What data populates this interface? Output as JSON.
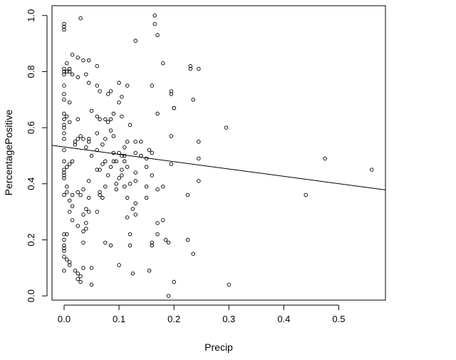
{
  "chart_data": {
    "type": "scatter",
    "title": "",
    "xlabel": "Precip",
    "ylabel": "PercentagePositive",
    "xlim": [
      -0.022,
      0.585
    ],
    "ylim": [
      -0.015,
      1.035
    ],
    "xticks": [
      0.0,
      0.1,
      0.2,
      0.3,
      0.4,
      0.5
    ],
    "xtick_labels": [
      "0.0",
      "0.1",
      "0.2",
      "0.3",
      "0.4",
      "0.5"
    ],
    "yticks": [
      0.0,
      0.2,
      0.4,
      0.6,
      0.8,
      1.0
    ],
    "ytick_labels": [
      "0.0",
      "0.2",
      "0.4",
      "0.6",
      "0.8",
      "1.0"
    ],
    "grid": false,
    "legend": "none",
    "marker": "open-circle",
    "regression_line": {
      "x": [
        -0.022,
        0.585
      ],
      "y": [
        0.537,
        0.378
      ]
    },
    "points": [
      [
        0.0,
        0.97
      ],
      [
        0.0,
        0.96
      ],
      [
        0.0,
        0.95
      ],
      [
        0.0,
        0.81
      ],
      [
        0.0,
        0.8
      ],
      [
        0.0,
        0.79
      ],
      [
        0.0,
        0.75
      ],
      [
        0.0,
        0.72
      ],
      [
        0.0,
        0.7
      ],
      [
        0.0,
        0.65
      ],
      [
        0.0,
        0.63
      ],
      [
        0.0,
        0.61
      ],
      [
        0.0,
        0.6
      ],
      [
        0.0,
        0.58
      ],
      [
        0.0,
        0.56
      ],
      [
        0.0,
        0.52
      ],
      [
        0.0,
        0.48
      ],
      [
        0.0,
        0.45
      ],
      [
        0.0,
        0.44
      ],
      [
        0.0,
        0.43
      ],
      [
        0.0,
        0.42
      ],
      [
        0.0,
        0.36
      ],
      [
        0.0,
        0.22
      ],
      [
        0.0,
        0.2
      ],
      [
        0.0,
        0.18
      ],
      [
        0.0,
        0.17
      ],
      [
        0.0,
        0.16
      ],
      [
        0.0,
        0.14
      ],
      [
        0.0,
        0.09
      ],
      [
        0.005,
        0.83
      ],
      [
        0.005,
        0.8
      ],
      [
        0.005,
        0.64
      ],
      [
        0.005,
        0.46
      ],
      [
        0.005,
        0.39
      ],
      [
        0.005,
        0.37
      ],
      [
        0.005,
        0.22
      ],
      [
        0.005,
        0.13
      ],
      [
        0.01,
        0.81
      ],
      [
        0.01,
        0.8
      ],
      [
        0.01,
        0.69
      ],
      [
        0.01,
        0.62
      ],
      [
        0.01,
        0.47
      ],
      [
        0.01,
        0.34
      ],
      [
        0.01,
        0.3
      ],
      [
        0.01,
        0.12
      ],
      [
        0.01,
        0.11
      ],
      [
        0.015,
        0.86
      ],
      [
        0.015,
        0.79
      ],
      [
        0.015,
        0.48
      ],
      [
        0.015,
        0.36
      ],
      [
        0.015,
        0.27
      ],
      [
        0.015,
        0.32
      ],
      [
        0.02,
        0.55
      ],
      [
        0.02,
        0.54
      ],
      [
        0.02,
        0.09
      ],
      [
        0.025,
        0.85
      ],
      [
        0.025,
        0.78
      ],
      [
        0.025,
        0.63
      ],
      [
        0.025,
        0.56
      ],
      [
        0.025,
        0.37
      ],
      [
        0.025,
        0.25
      ],
      [
        0.025,
        0.08
      ],
      [
        0.025,
        0.06
      ],
      [
        0.03,
        0.99
      ],
      [
        0.03,
        0.57
      ],
      [
        0.03,
        0.36
      ],
      [
        0.03,
        0.07
      ],
      [
        0.03,
        0.05
      ],
      [
        0.035,
        0.84
      ],
      [
        0.035,
        0.56
      ],
      [
        0.035,
        0.38
      ],
      [
        0.035,
        0.29
      ],
      [
        0.035,
        0.23
      ],
      [
        0.035,
        0.19
      ],
      [
        0.035,
        0.1
      ],
      [
        0.04,
        0.79
      ],
      [
        0.04,
        0.53
      ],
      [
        0.04,
        0.31
      ],
      [
        0.04,
        0.26
      ],
      [
        0.04,
        0.24
      ],
      [
        0.045,
        0.84
      ],
      [
        0.045,
        0.76
      ],
      [
        0.045,
        0.56
      ],
      [
        0.045,
        0.55
      ],
      [
        0.045,
        0.41
      ],
      [
        0.045,
        0.35
      ],
      [
        0.045,
        0.3
      ],
      [
        0.05,
        0.66
      ],
      [
        0.05,
        0.5
      ],
      [
        0.05,
        0.1
      ],
      [
        0.05,
        0.04
      ],
      [
        0.06,
        0.82
      ],
      [
        0.06,
        0.75
      ],
      [
        0.06,
        0.64
      ],
      [
        0.06,
        0.58
      ],
      [
        0.06,
        0.52
      ],
      [
        0.06,
        0.45
      ],
      [
        0.06,
        0.3
      ],
      [
        0.065,
        0.73
      ],
      [
        0.065,
        0.63
      ],
      [
        0.065,
        0.45
      ],
      [
        0.065,
        0.37
      ],
      [
        0.065,
        0.36
      ],
      [
        0.07,
        0.54
      ],
      [
        0.07,
        0.47
      ],
      [
        0.07,
        0.35
      ],
      [
        0.075,
        0.63
      ],
      [
        0.075,
        0.56
      ],
      [
        0.075,
        0.48
      ],
      [
        0.075,
        0.39
      ],
      [
        0.075,
        0.19
      ],
      [
        0.08,
        0.72
      ],
      [
        0.08,
        0.62
      ],
      [
        0.08,
        0.43
      ],
      [
        0.085,
        0.73
      ],
      [
        0.085,
        0.63
      ],
      [
        0.085,
        0.59
      ],
      [
        0.085,
        0.46
      ],
      [
        0.085,
        0.18
      ],
      [
        0.09,
        0.65
      ],
      [
        0.09,
        0.57
      ],
      [
        0.09,
        0.51
      ],
      [
        0.09,
        0.48
      ],
      [
        0.095,
        0.48
      ],
      [
        0.095,
        0.4
      ],
      [
        0.095,
        0.38
      ],
      [
        0.1,
        0.76
      ],
      [
        0.1,
        0.69
      ],
      [
        0.1,
        0.51
      ],
      [
        0.1,
        0.42
      ],
      [
        0.1,
        0.11
      ],
      [
        0.105,
        0.71
      ],
      [
        0.105,
        0.64
      ],
      [
        0.105,
        0.5
      ],
      [
        0.105,
        0.45
      ],
      [
        0.105,
        0.43
      ],
      [
        0.11,
        0.53
      ],
      [
        0.11,
        0.5
      ],
      [
        0.11,
        0.48
      ],
      [
        0.11,
        0.39
      ],
      [
        0.115,
        0.75
      ],
      [
        0.115,
        0.55
      ],
      [
        0.115,
        0.46
      ],
      [
        0.115,
        0.35
      ],
      [
        0.115,
        0.28
      ],
      [
        0.12,
        0.61
      ],
      [
        0.12,
        0.4
      ],
      [
        0.12,
        0.22
      ],
      [
        0.12,
        0.18
      ],
      [
        0.125,
        0.31
      ],
      [
        0.125,
        0.08
      ],
      [
        0.13,
        0.91
      ],
      [
        0.13,
        0.55
      ],
      [
        0.13,
        0.51
      ],
      [
        0.13,
        0.44
      ],
      [
        0.13,
        0.41
      ],
      [
        0.13,
        0.33
      ],
      [
        0.13,
        0.29
      ],
      [
        0.14,
        0.55
      ],
      [
        0.14,
        0.5
      ],
      [
        0.15,
        0.49
      ],
      [
        0.15,
        0.46
      ],
      [
        0.15,
        0.39
      ],
      [
        0.15,
        0.35
      ],
      [
        0.155,
        0.52
      ],
      [
        0.155,
        0.09
      ],
      [
        0.16,
        0.75
      ],
      [
        0.16,
        0.51
      ],
      [
        0.16,
        0.43
      ],
      [
        0.16,
        0.19
      ],
      [
        0.16,
        0.18
      ],
      [
        0.165,
        1.0
      ],
      [
        0.165,
        0.97
      ],
      [
        0.17,
        0.93
      ],
      [
        0.17,
        0.65
      ],
      [
        0.17,
        0.38
      ],
      [
        0.17,
        0.26
      ],
      [
        0.17,
        0.22
      ],
      [
        0.18,
        0.83
      ],
      [
        0.18,
        0.39
      ],
      [
        0.18,
        0.27
      ],
      [
        0.185,
        0.2
      ],
      [
        0.19,
        0.19
      ],
      [
        0.19,
        0.0
      ],
      [
        0.195,
        0.73
      ],
      [
        0.195,
        0.72
      ],
      [
        0.195,
        0.57
      ],
      [
        0.195,
        0.47
      ],
      [
        0.2,
        0.67
      ],
      [
        0.2,
        0.67
      ],
      [
        0.2,
        0.05
      ],
      [
        0.225,
        0.36
      ],
      [
        0.225,
        0.2
      ],
      [
        0.23,
        0.81
      ],
      [
        0.23,
        0.82
      ],
      [
        0.235,
        0.7
      ],
      [
        0.235,
        0.15
      ],
      [
        0.245,
        0.81
      ],
      [
        0.245,
        0.55
      ],
      [
        0.245,
        0.49
      ],
      [
        0.245,
        0.41
      ],
      [
        0.295,
        0.6
      ],
      [
        0.3,
        0.04
      ],
      [
        0.44,
        0.36
      ],
      [
        0.475,
        0.49
      ],
      [
        0.56,
        0.45
      ]
    ]
  }
}
